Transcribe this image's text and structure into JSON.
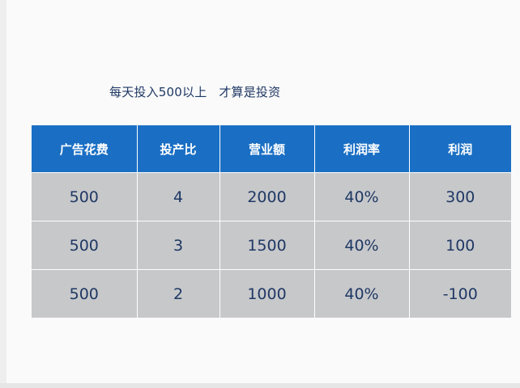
{
  "headline": "每天投入500以上   才算是投资",
  "table": {
    "headers": [
      "广告花费",
      "投产比",
      "营业额",
      "利润率",
      "利润"
    ],
    "rows": [
      [
        "500",
        "4",
        "2000",
        "40%",
        "300"
      ],
      [
        "500",
        "3",
        "1500",
        "40%",
        "100"
      ],
      [
        "500",
        "2",
        "1000",
        "40%",
        "-100"
      ]
    ]
  },
  "colors": {
    "header_bg": "#1a6fc4",
    "cell_bg": "#c7c8ca",
    "text": "#1f3864"
  }
}
